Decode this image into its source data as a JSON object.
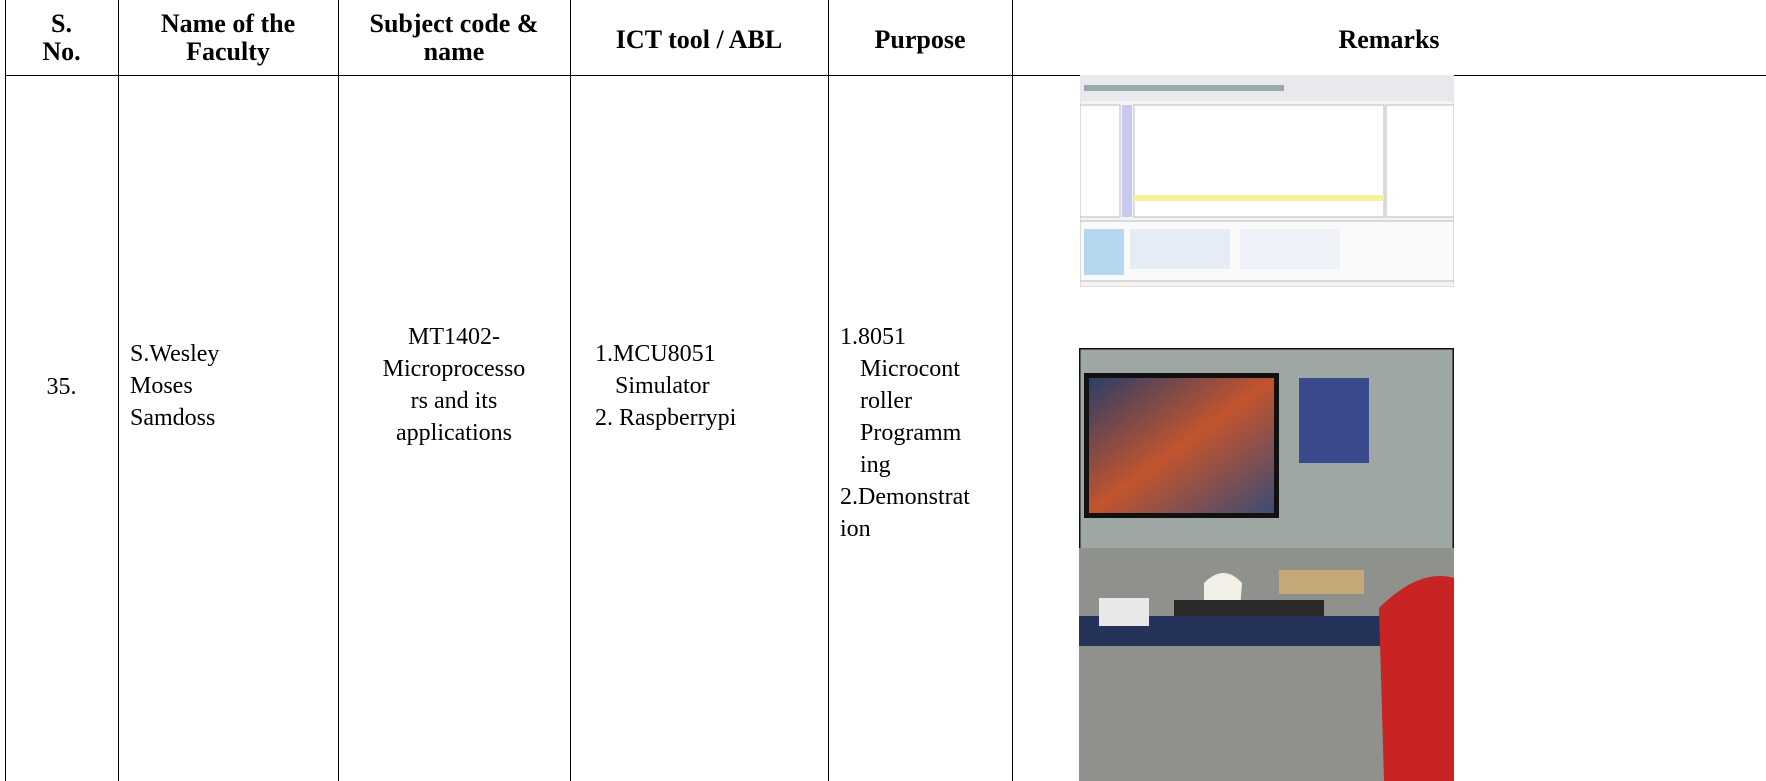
{
  "table": {
    "header": [
      [
        "S.",
        "No."
      ],
      [
        "Name of the",
        "Faculty"
      ],
      [
        "Subject code &",
        "name"
      ],
      [
        "ICT tool / ABL"
      ],
      [
        "Purpose"
      ],
      [
        "Remarks"
      ]
    ],
    "rows": [
      [
        [
          "35."
        ],
        [
          "S.Wesley",
          "Moses",
          "Samdoss"
        ],
        [
          "MT1402-",
          "Microprocesso",
          "rs and its",
          "applications"
        ],
        [
          "1.MCU8051",
          "Simulator",
          "2. Raspberrypi"
        ],
        [
          "1.8051",
          "Microcont",
          "roller",
          "Programm",
          "ing",
          "2.Demonstrat",
          "ion"
        ]
      ]
    ]
  }
}
